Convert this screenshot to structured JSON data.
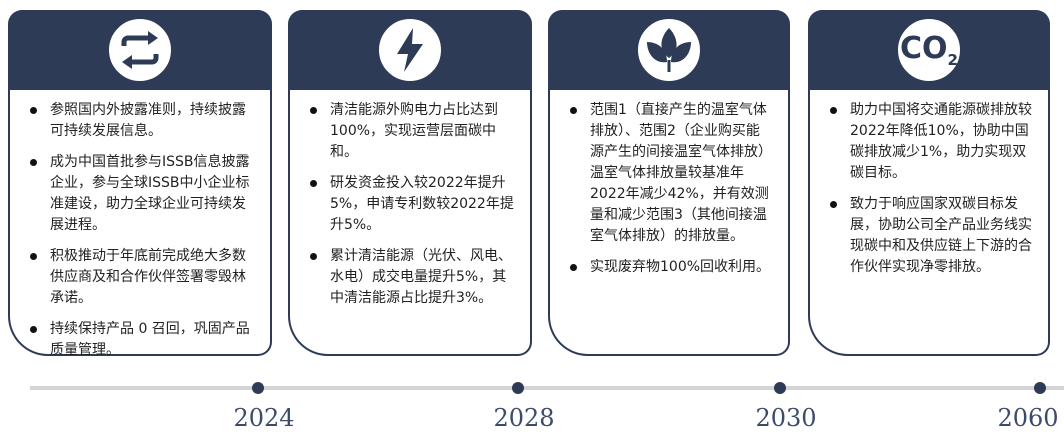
{
  "cards": [
    {
      "bullets": [
        "参照国内外披露准则，持续披露可持续发展信息。",
        "成为中国首批参与ISSB信息披露企业，参与全球ISSB中小企业标准建设，助力全球企业可持续发展进程。",
        "积极推动于年底前完成绝大多数供应商及和合作伙伴签署零毁林承诺。",
        "持续保持产品 0 召回，巩固产品质量管理。"
      ]
    },
    {
      "bullets": [
        "清洁能源外购电力占比达到100%，实现运营层面碳中和。",
        "研发资金投入较2022年提升5%，申请专利数较2022年提升5%。",
        "累计清洁能源（光伏、风电、水电）成交电量提升5%，其中清洁能源占比提升3%。"
      ]
    },
    {
      "bullets": [
        "范围1（直接产生的温室气体排放）、范围2（企业购买能源产生的间接温室气体排放）温室气体排放量较基准年2022年减少42%，并有效测量和减少范围3（其他间接温室气体排放）的排放量。",
        "实现废弃物100%回收利用。"
      ]
    },
    {
      "icon_text": "CO",
      "icon_sub": "2",
      "bullets": [
        "助力中国将交通能源碳排放较2022年降低10%，协助中国碳排放减少1%，助力实现双碳目标。",
        "致力于响应国家双碳目标发展，协助公司全产品业务线实现碳中和及供应链上下游的合作伙伴实现净零排放。"
      ]
    }
  ],
  "timeline": [
    "2024",
    "2028",
    "2030",
    "2060"
  ]
}
